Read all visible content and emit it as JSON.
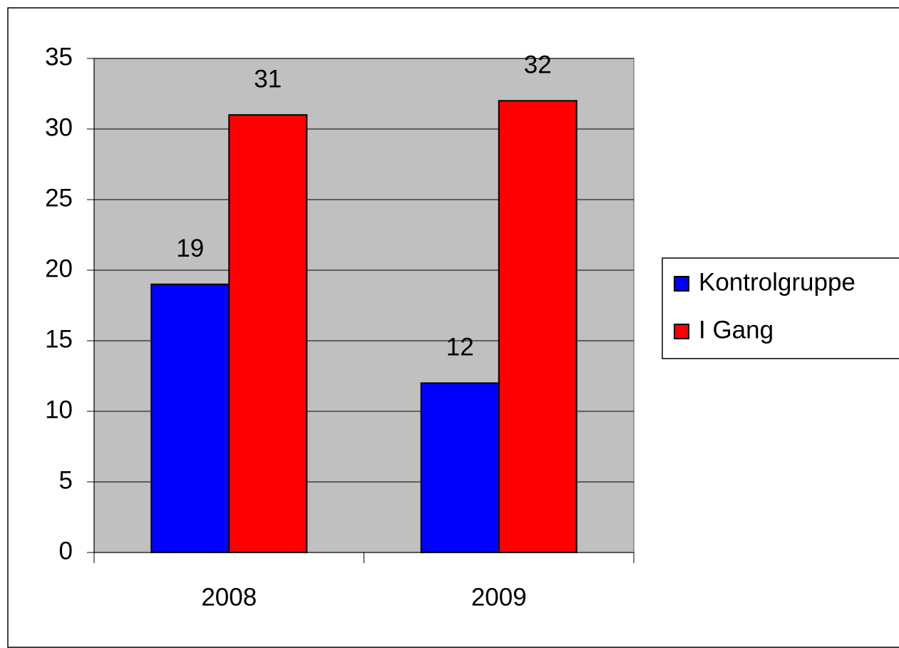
{
  "chart_data": {
    "type": "bar",
    "categories": [
      "2008",
      "2009"
    ],
    "series": [
      {
        "name": "Kontrolgruppe",
        "color": "#0000ff",
        "values": [
          19,
          12
        ]
      },
      {
        "name": "I Gang",
        "color": "#ff0000",
        "values": [
          31,
          32
        ]
      }
    ],
    "ylim": [
      0,
      35
    ],
    "yticks": [
      0,
      5,
      10,
      15,
      20,
      25,
      30,
      35
    ],
    "grid": true,
    "plot_background": "#c0c0c0",
    "legend": "right"
  }
}
